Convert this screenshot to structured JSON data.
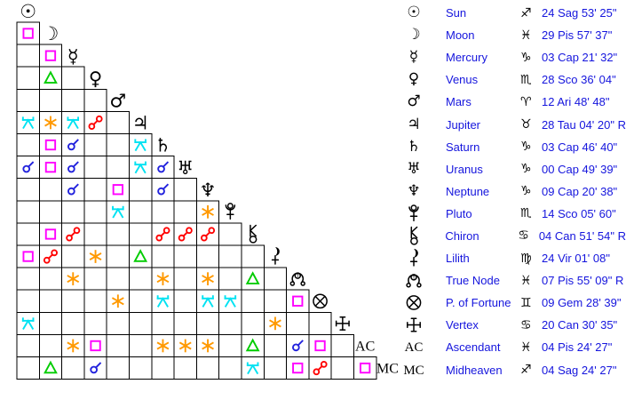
{
  "colors": {
    "background": "#ffffff",
    "grid_line": "#000000",
    "glyph_black": "#000000",
    "text_blue": "#1515dd",
    "aspect": {
      "cj": "#2222dd",
      "op": "#ff0000",
      "sq": "#ff00ff",
      "tr": "#00cc00",
      "sx": "#ff9900",
      "qx": "#00e2f2"
    }
  },
  "aspect_names": {
    "cj": "conjunction",
    "op": "opposition",
    "sq": "square",
    "tr": "trine",
    "sx": "sextile",
    "qx": "quincunx"
  },
  "grid": {
    "planets": [
      "sun",
      "moon",
      "mercury",
      "venus",
      "mars",
      "jupiter",
      "saturn",
      "uranus",
      "neptune",
      "pluto",
      "chiron",
      "lilith",
      "truenode",
      "fortune",
      "vertex",
      "ascendant",
      "midheaven"
    ],
    "rows": [
      [],
      [
        "sq"
      ],
      [
        "",
        "sq"
      ],
      [
        "",
        "tr",
        ""
      ],
      [
        "",
        "",
        "",
        ""
      ],
      [
        "qx",
        "sx",
        "qx",
        "op",
        ""
      ],
      [
        "",
        "sq",
        "cj",
        "",
        "",
        "qx"
      ],
      [
        "cj",
        "sq",
        "cj",
        "",
        "",
        "qx",
        "cj"
      ],
      [
        "",
        "",
        "cj",
        "",
        "sq",
        "",
        "cj",
        ""
      ],
      [
        "",
        "",
        "",
        "",
        "qx",
        "",
        "",
        "",
        "sx"
      ],
      [
        "",
        "sq",
        "op",
        "",
        "",
        "",
        "op",
        "op",
        "op",
        ""
      ],
      [
        "sq",
        "op",
        "",
        "sx",
        "",
        "tr",
        "",
        "",
        "",
        "",
        ""
      ],
      [
        "",
        "",
        "sx",
        "",
        "",
        "",
        "sx",
        "",
        "sx",
        "",
        "tr",
        ""
      ],
      [
        "",
        "",
        "",
        "",
        "sx",
        "",
        "qx",
        "",
        "qx",
        "qx",
        "",
        "",
        "sq"
      ],
      [
        "qx",
        "",
        "",
        "",
        "",
        "",
        "",
        "",
        "",
        "",
        "",
        "sx",
        "",
        ""
      ],
      [
        "",
        "",
        "sx",
        "sq",
        "",
        "",
        "sx",
        "sx",
        "sx",
        "",
        "tr",
        "",
        "cj",
        "sq",
        ""
      ],
      [
        "",
        "tr",
        "",
        "cj",
        "",
        "",
        "",
        "",
        "",
        "",
        "qx",
        "",
        "sq",
        "op",
        "",
        "sq"
      ]
    ]
  },
  "table": {
    "rows": [
      {
        "planet": "sun",
        "name": "Sun",
        "sign": "sagittarius",
        "position": "24 Sag 53' 25\""
      },
      {
        "planet": "moon",
        "name": "Moon",
        "sign": "pisces",
        "position": "29 Pis 57' 37\""
      },
      {
        "planet": "mercury",
        "name": "Mercury",
        "sign": "capricorn",
        "position": "03 Cap 21' 32\""
      },
      {
        "planet": "venus",
        "name": "Venus",
        "sign": "scorpio",
        "position": "28 Sco 36' 04\""
      },
      {
        "planet": "mars",
        "name": "Mars",
        "sign": "aries",
        "position": "12 Ari 48' 48\""
      },
      {
        "planet": "jupiter",
        "name": "Jupiter",
        "sign": "taurus",
        "position": "28 Tau 04' 20\" R"
      },
      {
        "planet": "saturn",
        "name": "Saturn",
        "sign": "capricorn",
        "position": "03 Cap 46' 40\""
      },
      {
        "planet": "uranus",
        "name": "Uranus",
        "sign": "capricorn",
        "position": "00 Cap 49' 39\""
      },
      {
        "planet": "neptune",
        "name": "Neptune",
        "sign": "capricorn",
        "position": "09 Cap 20' 38\""
      },
      {
        "planet": "pluto",
        "name": "Pluto",
        "sign": "scorpio",
        "position": "14 Sco 05' 60\""
      },
      {
        "planet": "chiron",
        "name": "Chiron",
        "sign": "cancer",
        "position": "04 Can 51' 54\" R"
      },
      {
        "planet": "lilith",
        "name": "Lilith",
        "sign": "virgo",
        "position": "24 Vir 01' 08\""
      },
      {
        "planet": "truenode",
        "name": "True Node",
        "sign": "pisces",
        "position": "07 Pis 55' 09\" R"
      },
      {
        "planet": "fortune",
        "name": "P. of Fortune",
        "sign": "gemini",
        "position": "09 Gem 28' 39\""
      },
      {
        "planet": "vertex",
        "name": "Vertex",
        "sign": "cancer",
        "position": "20 Can 30' 35\""
      },
      {
        "planet": "ascendant",
        "name": "Ascendant",
        "sign": "pisces",
        "position": "04 Pis 24' 27\""
      },
      {
        "planet": "midheaven",
        "name": "Midheaven",
        "sign": "sagittarius",
        "position": "04 Sag 24' 27\""
      }
    ]
  }
}
